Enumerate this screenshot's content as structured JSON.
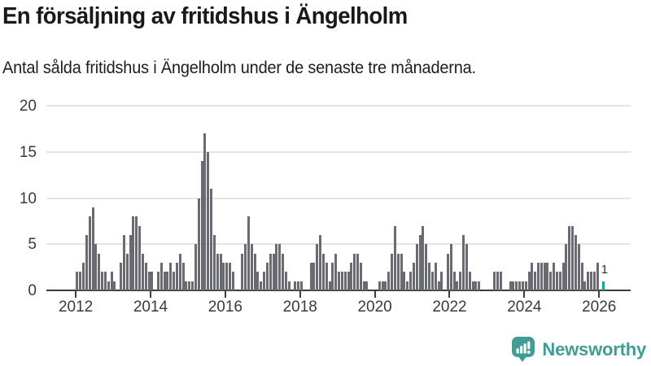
{
  "header": {
    "title": "En försäljning av fritidshus i Ängelholm",
    "subtitle": "Antal sålda fritidshus i Ängelholm under de senaste tre månaderna."
  },
  "chart_data": {
    "type": "bar",
    "title": "En försäljning av fritidshus i Ängelholm",
    "subtitle": "Antal sålda fritidshus i Ängelholm under de senaste tre månaderna.",
    "frequency": "monthly",
    "start_year": 2012,
    "start_month": 1,
    "values": [
      2,
      2,
      3,
      6,
      8,
      9,
      5,
      4,
      2,
      2,
      1,
      2,
      1,
      0,
      3,
      6,
      4,
      6,
      8,
      8,
      7,
      4,
      3,
      2,
      2,
      0,
      2,
      3,
      2,
      2,
      3,
      2,
      3,
      4,
      3,
      1,
      1,
      1,
      5,
      10,
      14,
      17,
      15,
      11,
      6,
      4,
      4,
      3,
      3,
      3,
      2,
      0,
      0,
      4,
      5,
      8,
      5,
      4,
      2,
      1,
      2,
      3,
      4,
      4,
      5,
      5,
      4,
      2,
      1,
      0,
      1,
      1,
      1,
      0,
      0,
      3,
      3,
      5,
      6,
      4,
      3,
      1,
      3,
      4,
      2,
      2,
      2,
      2,
      3,
      4,
      4,
      3,
      1,
      1,
      0,
      0,
      0,
      1,
      1,
      1,
      2,
      4,
      7,
      4,
      4,
      2,
      1,
      2,
      3,
      5,
      6,
      7,
      5,
      3,
      2,
      3,
      1,
      2,
      0,
      4,
      5,
      2,
      1,
      2,
      6,
      5,
      2,
      1,
      1,
      1,
      0,
      0,
      0,
      0,
      2,
      2,
      2,
      0,
      0,
      1,
      1,
      1,
      1,
      1,
      1,
      2,
      3,
      2,
      3,
      3,
      3,
      3,
      2,
      3,
      2,
      2,
      3,
      5,
      7,
      7,
      6,
      5,
      3,
      1,
      2,
      2,
      2,
      3,
      0,
      1
    ],
    "ylim": [
      0,
      20
    ],
    "yticks": [
      0,
      5,
      10,
      15,
      20
    ],
    "xtick_labels": [
      "2012",
      "2014",
      "2016",
      "2018",
      "2020",
      "2022",
      "2024",
      "2026"
    ],
    "grid": true,
    "legend": null,
    "bar_color": "#6a6a73",
    "highlight": {
      "index": 169,
      "value": 1,
      "label": "1",
      "color": "#15a79c"
    }
  },
  "footer": {
    "brand": "Newsworthy",
    "brand_color": "#3f9d96"
  }
}
